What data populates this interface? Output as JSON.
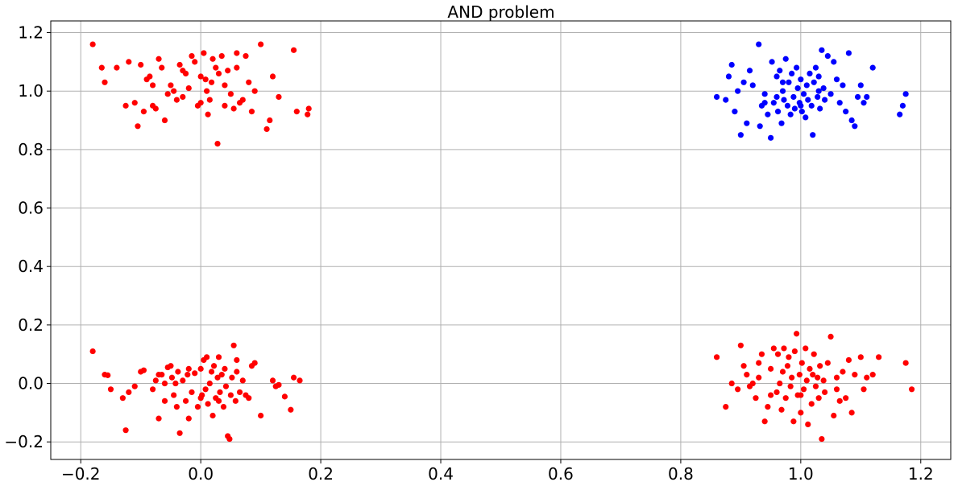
{
  "chart_data": {
    "type": "scatter",
    "title": "AND problem",
    "xlabel": "",
    "ylabel": "",
    "xlim": [
      -0.25,
      1.25
    ],
    "ylim": [
      -0.26,
      1.24
    ],
    "grid": true,
    "x_ticks": [
      "−0.2",
      "0.0",
      "0.2",
      "0.4",
      "0.6",
      "0.8",
      "1.0",
      "1.2"
    ],
    "y_ticks": [
      "−0.2",
      "0.0",
      "0.2",
      "0.4",
      "0.6",
      "0.8",
      "1.0",
      "1.2"
    ],
    "x_tick_values": [
      -0.2,
      0.0,
      0.2,
      0.4,
      0.6,
      0.8,
      1.0,
      1.2
    ],
    "y_tick_values": [
      -0.2,
      0.0,
      0.2,
      0.4,
      0.6,
      0.8,
      1.0,
      1.2
    ],
    "colors": {
      "class_0": "#ff0000",
      "class_1": "#0000ff",
      "grid": "#b0b0b0",
      "axis": "#000000"
    },
    "series": [
      {
        "color": "#ff0000",
        "points": [
          [
            -0.18,
            0.11
          ],
          [
            -0.16,
            0.03
          ],
          [
            -0.155,
            0.028
          ],
          [
            -0.15,
            -0.02
          ],
          [
            -0.13,
            -0.05
          ],
          [
            -0.125,
            -0.16
          ],
          [
            -0.12,
            -0.03
          ],
          [
            -0.11,
            -0.01
          ],
          [
            -0.1,
            0.04
          ],
          [
            -0.095,
            0.045
          ],
          [
            -0.08,
            -0.02
          ],
          [
            -0.075,
            0.01
          ],
          [
            -0.07,
            -0.12
          ],
          [
            -0.065,
            0.03
          ],
          [
            -0.06,
            -0.06
          ],
          [
            -0.055,
            0.055
          ],
          [
            -0.05,
            0.06
          ],
          [
            -0.048,
            0.02
          ],
          [
            -0.045,
            -0.04
          ],
          [
            -0.042,
            0.0
          ],
          [
            -0.04,
            -0.08
          ],
          [
            -0.038,
            0.04
          ],
          [
            -0.035,
            -0.17
          ],
          [
            -0.03,
            0.01
          ],
          [
            -0.025,
            -0.06
          ],
          [
            -0.022,
            0.03
          ],
          [
            -0.02,
            -0.12
          ],
          [
            -0.015,
            -0.03
          ],
          [
            -0.01,
            0.035
          ],
          [
            -0.005,
            -0.08
          ],
          [
            0.0,
            0.05
          ],
          [
            0.002,
            -0.04
          ],
          [
            0.005,
            0.08
          ],
          [
            0.008,
            -0.02
          ],
          [
            0.01,
            0.09
          ],
          [
            0.012,
            -0.07
          ],
          [
            0.015,
            0.0
          ],
          [
            0.018,
            0.04
          ],
          [
            0.02,
            -0.11
          ],
          [
            0.022,
            0.06
          ],
          [
            0.025,
            -0.05
          ],
          [
            0.028,
            0.02
          ],
          [
            0.03,
            0.09
          ],
          [
            0.032,
            -0.03
          ],
          [
            0.035,
            0.03
          ],
          [
            0.038,
            -0.08
          ],
          [
            0.04,
            0.05
          ],
          [
            0.042,
            -0.01
          ],
          [
            0.045,
            -0.18
          ],
          [
            0.048,
            -0.19
          ],
          [
            0.05,
            -0.04
          ],
          [
            0.052,
            0.02
          ],
          [
            0.055,
            0.13
          ],
          [
            0.058,
            -0.06
          ],
          [
            0.06,
            0.08
          ],
          [
            0.065,
            -0.03
          ],
          [
            0.07,
            0.01
          ],
          [
            0.075,
            -0.04
          ],
          [
            0.08,
            -0.05
          ],
          [
            0.085,
            0.06
          ],
          [
            0.09,
            0.07
          ],
          [
            0.1,
            -0.11
          ],
          [
            0.12,
            0.01
          ],
          [
            0.125,
            -0.01
          ],
          [
            0.13,
            -0.005
          ],
          [
            0.14,
            -0.045
          ],
          [
            0.15,
            -0.09
          ],
          [
            0.155,
            0.02
          ],
          [
            0.165,
            0.01
          ],
          [
            -0.07,
            0.03
          ],
          [
            -0.02,
            0.05
          ],
          [
            0.03,
            -0.06
          ],
          [
            0.0,
            -0.05
          ],
          [
            -0.06,
            0.0
          ],
          [
            0.06,
            0.04
          ],
          [
            -0.18,
            1.16
          ],
          [
            -0.165,
            1.08
          ],
          [
            -0.16,
            1.03
          ],
          [
            -0.14,
            1.08
          ],
          [
            -0.125,
            0.95
          ],
          [
            -0.12,
            1.1
          ],
          [
            -0.11,
            0.96
          ],
          [
            -0.105,
            0.88
          ],
          [
            -0.1,
            1.09
          ],
          [
            -0.095,
            0.93
          ],
          [
            -0.09,
            1.04
          ],
          [
            -0.085,
            1.05
          ],
          [
            -0.08,
            0.95
          ],
          [
            -0.075,
            0.94
          ],
          [
            -0.07,
            1.11
          ],
          [
            -0.065,
            1.08
          ],
          [
            -0.06,
            0.9
          ],
          [
            -0.055,
            0.99
          ],
          [
            -0.05,
            1.02
          ],
          [
            -0.045,
            1.0
          ],
          [
            -0.04,
            0.97
          ],
          [
            -0.035,
            1.09
          ],
          [
            -0.03,
            1.07
          ],
          [
            -0.025,
            1.06
          ],
          [
            -0.02,
            1.01
          ],
          [
            -0.015,
            1.12
          ],
          [
            -0.01,
            1.1
          ],
          [
            -0.005,
            0.95
          ],
          [
            0.0,
            0.96
          ],
          [
            0.005,
            1.13
          ],
          [
            0.008,
            1.04
          ],
          [
            0.01,
            1.0
          ],
          [
            0.012,
            0.92
          ],
          [
            0.015,
            0.97
          ],
          [
            0.018,
            1.03
          ],
          [
            0.02,
            1.11
          ],
          [
            0.025,
            1.08
          ],
          [
            0.028,
            0.82
          ],
          [
            0.03,
            1.06
          ],
          [
            0.035,
            1.12
          ],
          [
            0.04,
            1.02
          ],
          [
            0.045,
            1.07
          ],
          [
            0.05,
            0.99
          ],
          [
            0.055,
            0.94
          ],
          [
            0.06,
            1.13
          ],
          [
            0.065,
            0.96
          ],
          [
            0.07,
            0.97
          ],
          [
            0.075,
            1.12
          ],
          [
            0.08,
            1.03
          ],
          [
            0.085,
            0.93
          ],
          [
            0.09,
            1.0
          ],
          [
            0.1,
            1.16
          ],
          [
            0.11,
            0.87
          ],
          [
            0.115,
            0.9
          ],
          [
            0.12,
            1.05
          ],
          [
            0.13,
            0.98
          ],
          [
            0.155,
            1.14
          ],
          [
            0.16,
            0.93
          ],
          [
            0.178,
            0.92
          ],
          [
            0.18,
            0.94
          ],
          [
            -0.03,
            0.98
          ],
          [
            0.0,
            1.05
          ],
          [
            0.04,
            0.95
          ],
          [
            -0.08,
            1.02
          ],
          [
            0.06,
            1.08
          ],
          [
            0.86,
            0.09
          ],
          [
            0.875,
            -0.08
          ],
          [
            0.885,
            0.0
          ],
          [
            0.895,
            -0.02
          ],
          [
            0.9,
            0.13
          ],
          [
            0.905,
            0.06
          ],
          [
            0.91,
            0.03
          ],
          [
            0.915,
            -0.01
          ],
          [
            0.92,
            0.0
          ],
          [
            0.925,
            -0.05
          ],
          [
            0.93,
            0.02
          ],
          [
            0.935,
            0.1
          ],
          [
            0.94,
            -0.13
          ],
          [
            0.945,
            -0.08
          ],
          [
            0.95,
            0.05
          ],
          [
            0.955,
            0.12
          ],
          [
            0.96,
            -0.03
          ],
          [
            0.962,
            0.1
          ],
          [
            0.965,
            0.0
          ],
          [
            0.968,
            -0.09
          ],
          [
            0.97,
            0.04
          ],
          [
            0.972,
            0.12
          ],
          [
            0.975,
            -0.05
          ],
          [
            0.978,
            0.06
          ],
          [
            0.98,
            0.09
          ],
          [
            0.983,
            -0.01
          ],
          [
            0.985,
            0.02
          ],
          [
            0.988,
            -0.13
          ],
          [
            0.99,
            0.11
          ],
          [
            0.993,
            0.17
          ],
          [
            0.995,
            -0.04
          ],
          [
            0.998,
            0.03
          ],
          [
            1.0,
            -0.1
          ],
          [
            1.002,
            0.07
          ],
          [
            1.005,
            -0.02
          ],
          [
            1.008,
            0.12
          ],
          [
            1.01,
            0.01
          ],
          [
            1.012,
            -0.14
          ],
          [
            1.015,
            0.05
          ],
          [
            1.018,
            -0.07
          ],
          [
            1.02,
            0.03
          ],
          [
            1.022,
            0.1
          ],
          [
            1.025,
            -0.01
          ],
          [
            1.028,
            0.02
          ],
          [
            1.03,
            -0.05
          ],
          [
            1.032,
            0.06
          ],
          [
            1.035,
            -0.19
          ],
          [
            1.038,
            0.01
          ],
          [
            1.04,
            -0.03
          ],
          [
            1.045,
            0.07
          ],
          [
            1.05,
            0.16
          ],
          [
            1.055,
            -0.11
          ],
          [
            1.06,
            0.02
          ],
          [
            1.065,
            -0.06
          ],
          [
            1.07,
            0.04
          ],
          [
            1.075,
            -0.05
          ],
          [
            1.08,
            0.08
          ],
          [
            1.085,
            -0.1
          ],
          [
            1.09,
            0.03
          ],
          [
            1.1,
            0.09
          ],
          [
            1.105,
            -0.02
          ],
          [
            1.11,
            0.02
          ],
          [
            1.12,
            0.03
          ],
          [
            1.13,
            0.09
          ],
          [
            1.175,
            0.07
          ],
          [
            1.185,
            -0.02
          ],
          [
            0.95,
            -0.04
          ],
          [
            1.0,
            -0.04
          ],
          [
            1.06,
            -0.02
          ],
          [
            0.93,
            0.07
          ]
        ]
      },
      {
        "color": "#0000ff",
        "points": [
          [
            0.86,
            0.98
          ],
          [
            0.875,
            0.97
          ],
          [
            0.88,
            1.05
          ],
          [
            0.885,
            1.09
          ],
          [
            0.89,
            0.93
          ],
          [
            0.895,
            1.0
          ],
          [
            0.9,
            0.85
          ],
          [
            0.905,
            1.03
          ],
          [
            0.91,
            0.89
          ],
          [
            0.915,
            1.07
          ],
          [
            0.92,
            1.02
          ],
          [
            0.93,
            1.16
          ],
          [
            0.932,
            0.88
          ],
          [
            0.935,
            0.95
          ],
          [
            0.94,
            0.99
          ],
          [
            0.945,
            0.92
          ],
          [
            0.95,
            0.84
          ],
          [
            0.952,
            1.1
          ],
          [
            0.955,
            0.96
          ],
          [
            0.96,
            1.05
          ],
          [
            0.962,
            0.93
          ],
          [
            0.965,
            1.07
          ],
          [
            0.968,
            0.89
          ],
          [
            0.97,
            1.0
          ],
          [
            0.972,
            0.97
          ],
          [
            0.975,
            1.11
          ],
          [
            0.978,
            0.95
          ],
          [
            0.98,
            1.03
          ],
          [
            0.983,
            0.92
          ],
          [
            0.985,
            1.06
          ],
          [
            0.988,
            0.98
          ],
          [
            0.99,
            0.94
          ],
          [
            0.993,
            1.08
          ],
          [
            0.995,
            1.01
          ],
          [
            0.998,
            0.96
          ],
          [
            1.0,
            1.04
          ],
          [
            1.002,
            0.93
          ],
          [
            1.005,
            0.99
          ],
          [
            1.008,
            0.91
          ],
          [
            1.01,
            1.02
          ],
          [
            1.012,
            0.97
          ],
          [
            1.015,
            1.06
          ],
          [
            1.018,
            0.95
          ],
          [
            1.02,
            0.85
          ],
          [
            1.022,
            1.03
          ],
          [
            1.025,
            1.08
          ],
          [
            1.028,
            0.98
          ],
          [
            1.03,
            1.05
          ],
          [
            1.032,
            0.94
          ],
          [
            1.035,
            1.14
          ],
          [
            1.038,
            1.01
          ],
          [
            1.04,
            0.97
          ],
          [
            1.045,
            1.12
          ],
          [
            1.05,
            0.99
          ],
          [
            1.055,
            1.1
          ],
          [
            1.06,
            1.04
          ],
          [
            1.065,
            0.96
          ],
          [
            1.07,
            1.02
          ],
          [
            1.075,
            0.93
          ],
          [
            1.08,
            1.13
          ],
          [
            1.085,
            0.9
          ],
          [
            1.09,
            0.88
          ],
          [
            1.095,
            0.98
          ],
          [
            1.1,
            1.02
          ],
          [
            1.105,
            0.96
          ],
          [
            1.11,
            0.98
          ],
          [
            1.12,
            1.08
          ],
          [
            1.165,
            0.92
          ],
          [
            1.17,
            0.95
          ],
          [
            1.175,
            0.99
          ],
          [
            0.94,
            0.96
          ],
          [
            0.97,
            1.03
          ],
          [
            1.0,
            0.95
          ],
          [
            1.03,
            1.0
          ],
          [
            0.96,
            0.98
          ]
        ]
      }
    ]
  }
}
